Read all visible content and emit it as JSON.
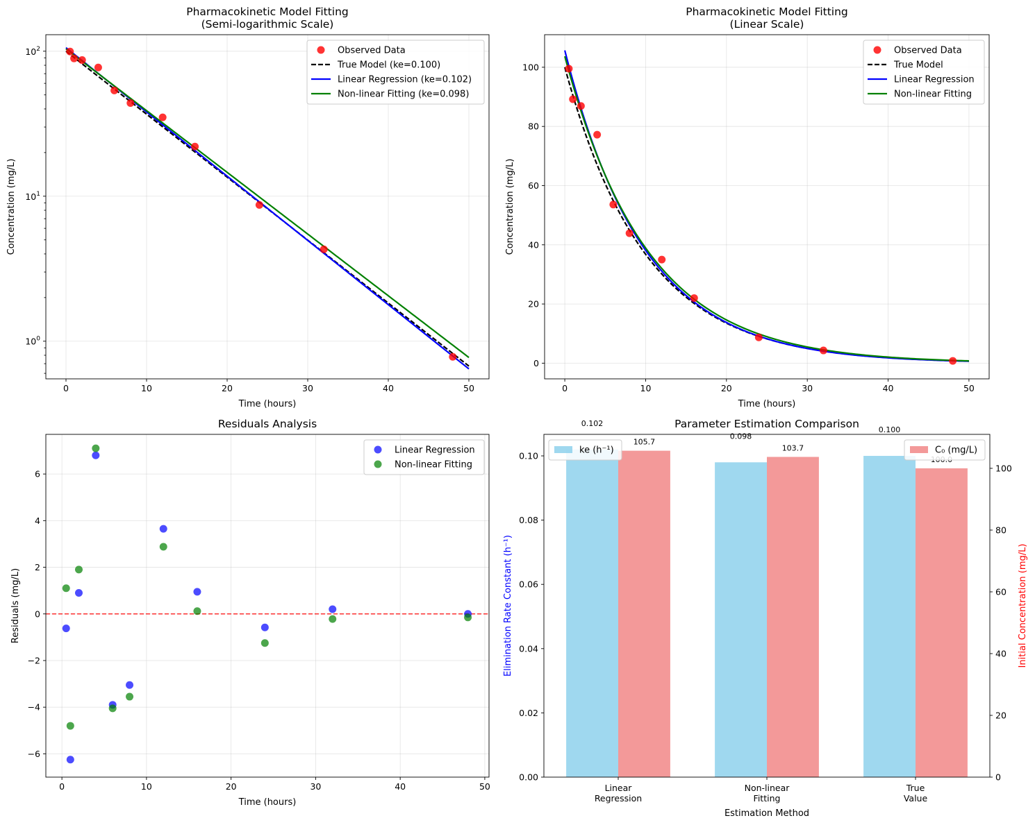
{
  "chart_data": [
    {
      "id": "semilog",
      "type": "line",
      "title": [
        "Pharmacokinetic Model Fitting",
        "(Semi-logarithmic Scale)"
      ],
      "xlabel": "Time (hours)",
      "ylabel": "Concentration (mg/L)",
      "yscale": "log",
      "xlim": [
        -2.5,
        52.5
      ],
      "ylim": [
        0.55,
        130
      ],
      "xticks": [
        0,
        10,
        20,
        30,
        40,
        50
      ],
      "yticks": [
        {
          "value": 1,
          "base": "10",
          "exp": "0"
        },
        {
          "value": 10,
          "base": "10",
          "exp": "1"
        },
        {
          "value": 100,
          "base": "10",
          "exp": "2"
        }
      ],
      "grid": true,
      "legend_position": "top-right",
      "observed": {
        "name": "Observed Data",
        "color": "#ff0000",
        "x": [
          0.5,
          1,
          2,
          4,
          6,
          8,
          12,
          16,
          24,
          32,
          48
        ],
        "y": [
          99.5,
          89.2,
          86.9,
          77.2,
          53.6,
          43.9,
          35.0,
          22.0,
          8.7,
          4.3,
          0.78
        ]
      },
      "curves": [
        {
          "name": "True Model (ke=0.100)",
          "c0": 100.0,
          "ke": 0.1,
          "color": "#000000",
          "dash": true
        },
        {
          "name": "Linear Regression (ke=0.102)",
          "c0": 105.7,
          "ke": 0.102,
          "color": "#0000ff",
          "dash": false
        },
        {
          "name": "Non-linear Fitting (ke=0.098)",
          "c0": 103.7,
          "ke": 0.098,
          "color": "#008000",
          "dash": false
        }
      ]
    },
    {
      "id": "linear",
      "type": "line",
      "title": [
        "Pharmacokinetic Model Fitting",
        "(Linear Scale)"
      ],
      "xlabel": "Time (hours)",
      "ylabel": "Concentration (mg/L)",
      "yscale": "linear",
      "xlim": [
        -2.5,
        52.5
      ],
      "ylim": [
        -5.3,
        111
      ],
      "xticks": [
        0,
        10,
        20,
        30,
        40,
        50
      ],
      "yticks": [
        0,
        20,
        40,
        60,
        80,
        100
      ],
      "grid": true,
      "legend_position": "top-right",
      "observed": {
        "name": "Observed Data",
        "color": "#ff0000",
        "x": [
          0.5,
          1,
          2,
          4,
          6,
          8,
          12,
          16,
          24,
          32,
          48
        ],
        "y": [
          99.5,
          89.2,
          86.9,
          77.2,
          53.6,
          43.9,
          35.0,
          22.0,
          8.7,
          4.3,
          0.78
        ]
      },
      "curves": [
        {
          "name": "True Model",
          "c0": 100.0,
          "ke": 0.1,
          "color": "#000000",
          "dash": true
        },
        {
          "name": "Linear Regression",
          "c0": 105.7,
          "ke": 0.102,
          "color": "#0000ff",
          "dash": false
        },
        {
          "name": "Non-linear Fitting",
          "c0": 103.7,
          "ke": 0.098,
          "color": "#008000",
          "dash": false
        }
      ]
    },
    {
      "id": "residuals",
      "type": "scatter",
      "title": [
        "Residuals Analysis"
      ],
      "xlabel": "Time (hours)",
      "ylabel": "Residuals (mg/L)",
      "xlim": [
        -1.9,
        50.5
      ],
      "ylim": [
        -7.0,
        7.7
      ],
      "xticks": [
        0,
        10,
        20,
        30,
        40,
        50
      ],
      "yticks": [
        -6,
        -4,
        -2,
        0,
        2,
        4,
        6
      ],
      "zero_line": 0,
      "grid": true,
      "legend_position": "top-right",
      "series": [
        {
          "name": "Linear Regression",
          "color": "#0000ff",
          "x": [
            0.5,
            1,
            2,
            4,
            6,
            8,
            12,
            16,
            24,
            32,
            48
          ],
          "y": [
            -0.62,
            -6.25,
            0.9,
            6.8,
            -3.9,
            -3.05,
            3.65,
            0.95,
            -0.58,
            0.2,
            0.0
          ]
        },
        {
          "name": "Non-linear Fitting",
          "color": "#008000",
          "x": [
            0.5,
            1,
            2,
            4,
            6,
            8,
            12,
            16,
            24,
            32,
            48
          ],
          "y": [
            1.1,
            -4.8,
            1.9,
            7.1,
            -4.05,
            -3.55,
            2.88,
            0.12,
            -1.25,
            -0.22,
            -0.15
          ]
        }
      ]
    },
    {
      "id": "params",
      "type": "bar",
      "title": [
        "Parameter Estimation Comparison"
      ],
      "xlabel": "Estimation Method",
      "categories": [
        [
          "Linear",
          "Regression"
        ],
        [
          "Non-linear",
          "Fitting"
        ],
        [
          "True",
          "Value"
        ]
      ],
      "ylabel_left": "Elimination Rate Constant (h⁻¹)",
      "ylabel_right": "Initial Concentration (mg/L)",
      "ylim_left": [
        0,
        0.1067
      ],
      "ylim_right": [
        0,
        111
      ],
      "yticks_left": [
        "0.00",
        "0.02",
        "0.04",
        "0.06",
        "0.08",
        "0.10"
      ],
      "yticks_right": [
        0,
        20,
        40,
        60,
        80,
        100
      ],
      "grid": false,
      "series": [
        {
          "name": "ke (h⁻¹)",
          "axis": "left",
          "color": "#87ceeb",
          "values": [
            0.102,
            0.098,
            0.1
          ],
          "labels": [
            "0.102",
            "0.098",
            "0.100"
          ]
        },
        {
          "name": "C₀ (mg/L)",
          "axis": "right",
          "color": "#f08080",
          "values": [
            105.7,
            103.7,
            100.0
          ],
          "labels": [
            "105.7",
            "103.7",
            "100.0"
          ]
        }
      ],
      "legend_left": "top-left",
      "legend_right": "top-right",
      "colors": {
        "left_label": "#0000ff",
        "right_label": "#ff0000"
      }
    }
  ]
}
